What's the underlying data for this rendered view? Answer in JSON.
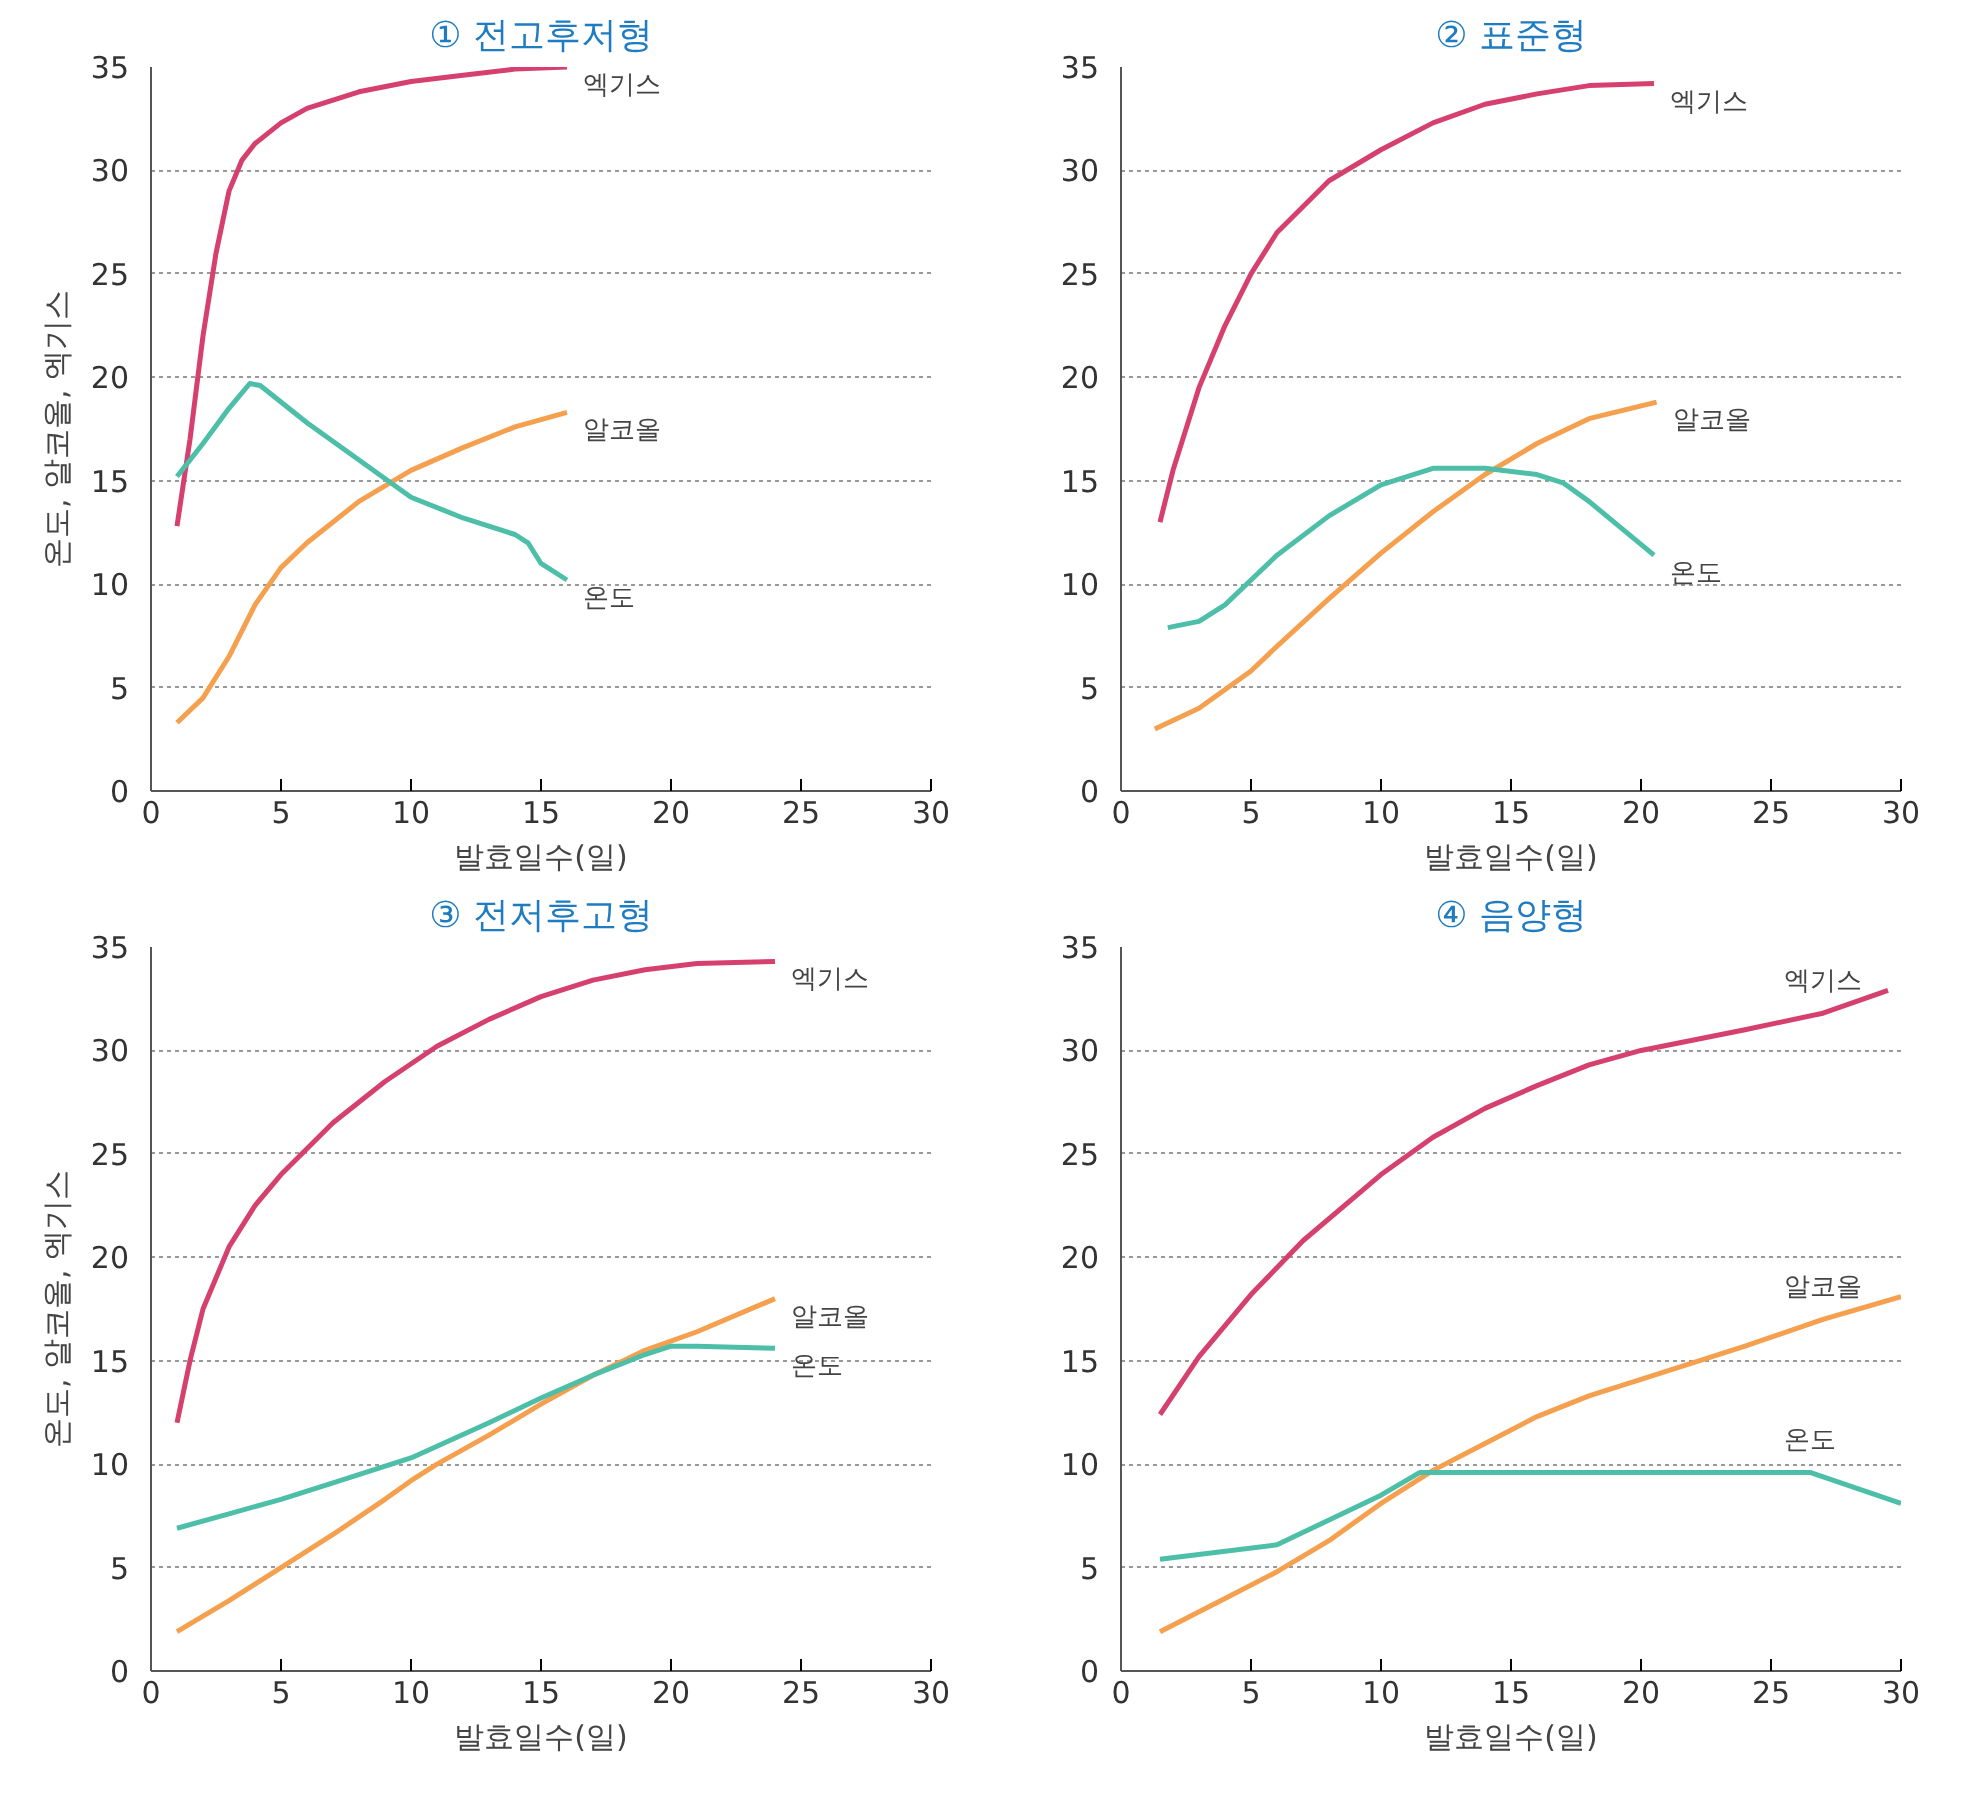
{
  "chart_data": [
    {
      "type": "line",
      "title": "① 전고후저형",
      "xlabel": "발효일수(일)",
      "ylabel": "온도, 알코올, 엑기스",
      "xlim": [
        0,
        30
      ],
      "ylim": [
        0,
        35
      ],
      "xticks": [
        0,
        5,
        10,
        15,
        20,
        25,
        30
      ],
      "yticks": [
        0,
        5,
        10,
        15,
        20,
        25,
        30,
        35
      ],
      "grid": "y",
      "series": [
        {
          "name": "엑기스",
          "color": "#d6406f",
          "x": [
            1,
            1.5,
            2,
            2.5,
            3,
            3.5,
            4,
            5,
            6,
            8,
            10,
            12,
            14,
            16
          ],
          "values": [
            12.8,
            17,
            22,
            26,
            29,
            30.5,
            31.3,
            32.3,
            33,
            33.8,
            34.3,
            34.6,
            34.9,
            35
          ]
        },
        {
          "name": "알코올",
          "color": "#f5a04e",
          "x": [
            1,
            2,
            3,
            4,
            5,
            6,
            8,
            10,
            12,
            14,
            16
          ],
          "values": [
            3.3,
            4.5,
            6.5,
            9,
            10.8,
            12,
            14,
            15.5,
            16.6,
            17.6,
            18.3
          ]
        },
        {
          "name": "온도",
          "color": "#4dbfa8",
          "x": [
            1,
            2,
            3,
            3.8,
            4.2,
            6,
            8,
            10,
            12,
            14,
            14.5,
            15,
            16
          ],
          "values": [
            15.2,
            16.8,
            18.5,
            19.7,
            19.6,
            17.8,
            16,
            14.2,
            13.2,
            12.4,
            12,
            11,
            10.2
          ]
        }
      ]
    },
    {
      "type": "line",
      "title": "② 표준형",
      "xlabel": "발효일수(일)",
      "xlim": [
        0,
        30
      ],
      "ylim": [
        0,
        35
      ],
      "xticks": [
        0,
        5,
        10,
        15,
        20,
        25,
        30
      ],
      "yticks": [
        0,
        5,
        10,
        15,
        20,
        25,
        30,
        35
      ],
      "grid": "y",
      "series": [
        {
          "name": "엑기스",
          "color": "#d6406f",
          "x": [
            1.5,
            2,
            3,
            4,
            5,
            6,
            8,
            10,
            12,
            14,
            16,
            18,
            20.5
          ],
          "values": [
            13,
            15.5,
            19.5,
            22.5,
            25,
            27,
            29.5,
            31,
            32.3,
            33.2,
            33.7,
            34.1,
            34.2
          ]
        },
        {
          "name": "알코올",
          "color": "#f5a04e",
          "x": [
            1.3,
            3,
            5,
            6,
            8,
            10,
            12,
            14,
            16,
            18,
            20.6
          ],
          "values": [
            3,
            4,
            5.8,
            7,
            9.3,
            11.5,
            13.5,
            15.3,
            16.8,
            18,
            18.8
          ]
        },
        {
          "name": "온도",
          "color": "#4dbfa8",
          "x": [
            1.8,
            3,
            4,
            5,
            6,
            8,
            10,
            12,
            14,
            16,
            17,
            18,
            20.5
          ],
          "values": [
            7.9,
            8.2,
            9,
            10.2,
            11.4,
            13.3,
            14.8,
            15.6,
            15.6,
            15.3,
            14.9,
            14,
            11.4
          ]
        }
      ]
    },
    {
      "type": "line",
      "title": "③ 전저후고형",
      "xlabel": "발효일수(일)",
      "ylabel": "온도, 알코올, 엑기스",
      "xlim": [
        0,
        30
      ],
      "ylim": [
        0,
        35
      ],
      "xticks": [
        0,
        5,
        10,
        15,
        20,
        25,
        30
      ],
      "yticks": [
        0,
        5,
        10,
        15,
        20,
        25,
        30,
        35
      ],
      "grid": "y",
      "series": [
        {
          "name": "엑기스",
          "color": "#d6406f",
          "x": [
            1,
            1.5,
            2,
            3,
            4,
            5,
            7,
            9,
            11,
            13,
            15,
            17,
            19,
            21,
            24
          ],
          "values": [
            12,
            15,
            17.5,
            20.5,
            22.5,
            24,
            26.5,
            28.5,
            30.2,
            31.5,
            32.6,
            33.4,
            33.9,
            34.2,
            34.3
          ]
        },
        {
          "name": "알코올",
          "color": "#f5a04e",
          "x": [
            1,
            3,
            5,
            7,
            9,
            10,
            11,
            13,
            15,
            17,
            19,
            21,
            24
          ],
          "values": [
            1.9,
            3.4,
            5,
            6.6,
            8.3,
            9.2,
            10,
            11.4,
            12.9,
            14.3,
            15.5,
            16.4,
            18
          ]
        },
        {
          "name": "온도",
          "color": "#4dbfa8",
          "x": [
            1,
            3,
            5,
            7,
            10,
            13,
            15,
            17,
            19,
            20,
            21,
            24
          ],
          "values": [
            6.9,
            7.6,
            8.3,
            9.1,
            10.3,
            12,
            13.2,
            14.3,
            15.3,
            15.7,
            15.7,
            15.6
          ]
        }
      ]
    },
    {
      "type": "line",
      "title": "④ 음양형",
      "xlabel": "발효일수(일)",
      "xlim": [
        0,
        30
      ],
      "ylim": [
        0,
        35
      ],
      "xticks": [
        0,
        5,
        10,
        15,
        20,
        25,
        30
      ],
      "yticks": [
        0,
        5,
        10,
        15,
        20,
        25,
        30,
        35
      ],
      "grid": "y",
      "series": [
        {
          "name": "엑기스",
          "color": "#d6406f",
          "x": [
            1.5,
            3,
            5,
            7,
            10,
            12,
            14,
            16,
            18,
            20,
            24,
            27,
            29.5
          ],
          "values": [
            12.4,
            15.2,
            18.2,
            20.8,
            24,
            25.8,
            27.2,
            28.3,
            29.3,
            30,
            31,
            31.8,
            32.9
          ]
        },
        {
          "name": "알코올",
          "color": "#f5a04e",
          "x": [
            1.5,
            4,
            6,
            8,
            10,
            12,
            14,
            16,
            18,
            20,
            24,
            27,
            30
          ],
          "values": [
            1.9,
            3.5,
            4.8,
            6.3,
            8.1,
            9.7,
            11,
            12.3,
            13.3,
            14.1,
            15.7,
            17,
            18.1
          ]
        },
        {
          "name": "온도",
          "color": "#4dbfa8",
          "x": [
            1.5,
            6,
            10,
            11.5,
            26.5,
            30
          ],
          "values": [
            5.4,
            6.1,
            8.5,
            9.6,
            9.6,
            8.1
          ]
        }
      ]
    }
  ]
}
